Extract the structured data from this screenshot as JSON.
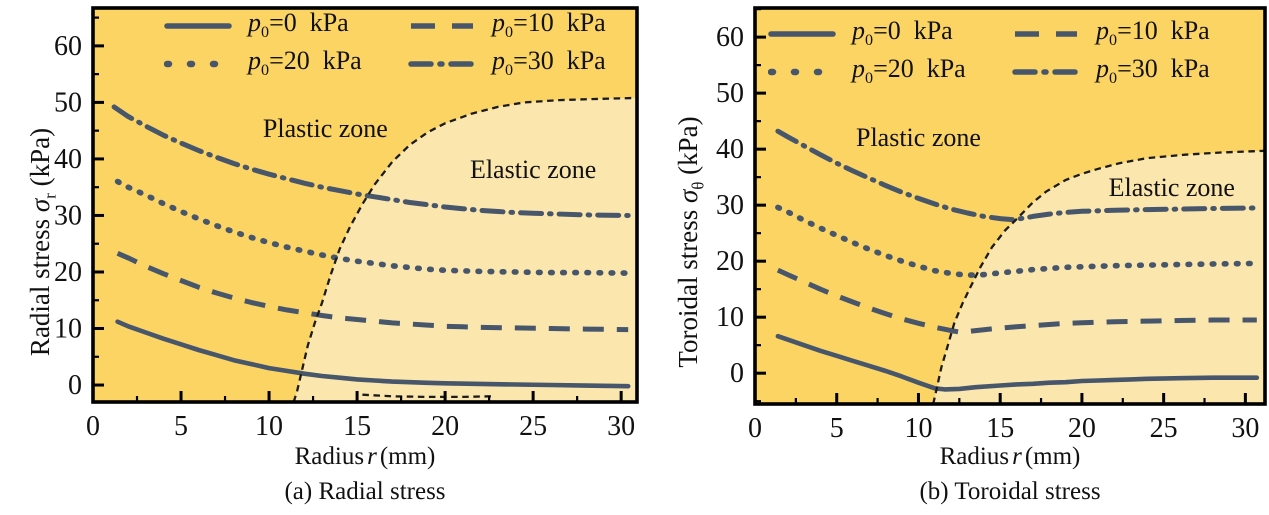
{
  "figure": {
    "colors": {
      "plastic_zone": "#FBD464",
      "elastic_zone": "#FBE7AE",
      "curve": "#47566B",
      "boundary": "#1B1B1B",
      "axis": "#000000",
      "text": "#111111"
    },
    "legend": {
      "items": [
        {
          "var": "p",
          "sub": "0",
          "rest": "=0  kPa",
          "style": "solid"
        },
        {
          "var": "p",
          "sub": "0",
          "rest": "=10  kPa",
          "style": "dashed"
        },
        {
          "var": "p",
          "sub": "0",
          "rest": "=20  kPa",
          "style": "dotted"
        },
        {
          "var": "p",
          "sub": "0",
          "rest": "=30  kPa",
          "style": "dashdot"
        }
      ]
    }
  },
  "chart_data": [
    {
      "type": "line",
      "title": "(a) Radial stress",
      "xlabel": {
        "prefix": "Radius",
        "var": "r",
        "unit": "(mm)"
      },
      "ylabel": {
        "prefix": "Radial stress",
        "symbol": "σ",
        "sub": "r",
        "unit": "(kPa)"
      },
      "x_ticks": [
        0,
        5,
        10,
        15,
        20,
        25,
        30
      ],
      "y_ticks": [
        0,
        10,
        20,
        30,
        40,
        50,
        60
      ],
      "x_minor_step": 2.5,
      "y_minor_step": 5,
      "xlim": [
        0,
        30.9
      ],
      "ylim": [
        -3.0,
        66.7
      ],
      "zones": {
        "plastic_label": "Plastic zone",
        "elastic_label": "Elastic zone",
        "plastic_label_pos": [
          13.2,
          45.3
        ],
        "elastic_label_pos": [
          25.0,
          38.0
        ]
      },
      "boundary": [
        [
          11.4,
          -3.0
        ],
        [
          11.6,
          -1.0
        ],
        [
          11.9,
          3.0
        ],
        [
          12.2,
          7.0
        ],
        [
          12.6,
          11.0
        ],
        [
          13.0,
          14.5
        ],
        [
          13.5,
          19.5
        ],
        [
          14.0,
          24.0
        ],
        [
          14.6,
          28.0
        ],
        [
          15.3,
          32.0
        ],
        [
          16.0,
          35.5
        ],
        [
          17.0,
          39.5
        ],
        [
          18.0,
          42.5
        ],
        [
          19.0,
          44.7
        ],
        [
          20.0,
          46.3
        ],
        [
          21.5,
          48.0
        ],
        [
          23.0,
          49.2
        ],
        [
          24.5,
          50.0
        ],
        [
          26.5,
          50.4
        ],
        [
          28.5,
          50.6
        ],
        [
          30.9,
          50.8
        ]
      ],
      "sub_axis_dash": [
        [
          15.3,
          -1.7
        ],
        [
          17.0,
          -2.0
        ],
        [
          19.0,
          -2.1
        ],
        [
          21.0,
          -2.1
        ],
        [
          22.6,
          -2.0
        ]
      ],
      "series": [
        {
          "name": "p0=0 kPa",
          "style": "solid",
          "points": [
            [
              1.4,
              11.2
            ],
            [
              2,
              10.4
            ],
            [
              3,
              9.3
            ],
            [
              4,
              8.2
            ],
            [
              5,
              7.2
            ],
            [
              6,
              6.2
            ],
            [
              7,
              5.3
            ],
            [
              8,
              4.4
            ],
            [
              9,
              3.7
            ],
            [
              10,
              3.0
            ],
            [
              11,
              2.5
            ],
            [
              12,
              2.0
            ],
            [
              13,
              1.6
            ],
            [
              14,
              1.3
            ],
            [
              15,
              1.0
            ],
            [
              16,
              0.8
            ],
            [
              17,
              0.6
            ],
            [
              18,
              0.5
            ],
            [
              19,
              0.4
            ],
            [
              20,
              0.3
            ],
            [
              22,
              0.2
            ],
            [
              24,
              0.1
            ],
            [
              26,
              0.0
            ],
            [
              28,
              -0.1
            ],
            [
              30.4,
              -0.2
            ]
          ]
        },
        {
          "name": "p0=10 kPa",
          "style": "dashed",
          "points": [
            [
              1.4,
              23.3
            ],
            [
              2,
              22.5
            ],
            [
              3,
              21.0
            ],
            [
              4,
              19.7
            ],
            [
              5,
              18.5
            ],
            [
              6,
              17.3
            ],
            [
              7,
              16.3
            ],
            [
              8,
              15.4
            ],
            [
              9,
              14.6
            ],
            [
              10,
              13.9
            ],
            [
              11,
              13.3
            ],
            [
              12,
              12.8
            ],
            [
              13,
              12.3
            ],
            [
              14,
              11.9
            ],
            [
              15,
              11.6
            ],
            [
              16,
              11.3
            ],
            [
              17,
              11.0
            ],
            [
              18,
              10.8
            ],
            [
              19,
              10.6
            ],
            [
              20,
              10.4
            ],
            [
              21,
              10.3
            ],
            [
              22,
              10.2
            ],
            [
              24,
              10.1
            ],
            [
              26,
              10.0
            ],
            [
              28,
              9.9
            ],
            [
              30.4,
              9.8
            ]
          ]
        },
        {
          "name": "p0=20 kPa",
          "style": "dotted",
          "points": [
            [
              1.4,
              36.0
            ],
            [
              2,
              35.0
            ],
            [
              3,
              33.6
            ],
            [
              4,
              32.1
            ],
            [
              5,
              30.7
            ],
            [
              6,
              29.4
            ],
            [
              7,
              28.2
            ],
            [
              8,
              27.1
            ],
            [
              9,
              26.1
            ],
            [
              10,
              25.2
            ],
            [
              11,
              24.4
            ],
            [
              12,
              23.7
            ],
            [
              13,
              23.0
            ],
            [
              14,
              22.4
            ],
            [
              15,
              21.9
            ],
            [
              16,
              21.5
            ],
            [
              17,
              21.1
            ],
            [
              18,
              20.8
            ],
            [
              19,
              20.5
            ],
            [
              20,
              20.3
            ],
            [
              22,
              20.1
            ],
            [
              24,
              20.0
            ],
            [
              26,
              19.9
            ],
            [
              28,
              19.9
            ],
            [
              30.4,
              19.8
            ]
          ]
        },
        {
          "name": "p0=30 kPa",
          "style": "dashdot",
          "points": [
            [
              1.2,
              49.2
            ],
            [
              2,
              47.5
            ],
            [
              3,
              45.8
            ],
            [
              4,
              44.2
            ],
            [
              5,
              42.8
            ],
            [
              6,
              41.5
            ],
            [
              7,
              40.3
            ],
            [
              8,
              39.2
            ],
            [
              9,
              38.2
            ],
            [
              10,
              37.3
            ],
            [
              11,
              36.5
            ],
            [
              12,
              35.7
            ],
            [
              13,
              35.0
            ],
            [
              14,
              34.4
            ],
            [
              15,
              33.8
            ],
            [
              16,
              33.3
            ],
            [
              17,
              32.8
            ],
            [
              18,
              32.3
            ],
            [
              19,
              31.9
            ],
            [
              20,
              31.5
            ],
            [
              21,
              31.2
            ],
            [
              22,
              30.9
            ],
            [
              23,
              30.7
            ],
            [
              24,
              30.5
            ],
            [
              25,
              30.4
            ],
            [
              26,
              30.3
            ],
            [
              28,
              30.1
            ],
            [
              30.4,
              30.0
            ]
          ]
        }
      ]
    },
    {
      "type": "line",
      "title": "(b) Toroidal stress",
      "xlabel": {
        "prefix": "Radius",
        "var": "r",
        "unit": "(mm)"
      },
      "ylabel": {
        "prefix": "Toroidal stress",
        "symbol": "σ",
        "sub": "θ",
        "unit": "(kPa)"
      },
      "x_ticks": [
        0,
        5,
        10,
        15,
        20,
        25,
        30
      ],
      "y_ticks": [
        0,
        10,
        20,
        30,
        40,
        50,
        60
      ],
      "x_minor_step": 2.5,
      "y_minor_step": 5,
      "xlim": [
        0,
        31.2
      ],
      "ylim": [
        -5.5,
        65.2
      ],
      "zones": {
        "plastic_label": "Plastic zone",
        "elastic_label": "Elastic zone",
        "plastic_label_pos": [
          10.0,
          42.0
        ],
        "elastic_label_pos": [
          25.5,
          33.0
        ]
      },
      "boundary": [
        [
          10.9,
          -5.5
        ],
        [
          11.1,
          -3.0
        ],
        [
          11.4,
          1.0
        ],
        [
          11.8,
          5.0
        ],
        [
          12.2,
          9.0
        ],
        [
          12.7,
          12.5
        ],
        [
          13.2,
          15.5
        ],
        [
          13.8,
          19.0
        ],
        [
          14.5,
          22.5
        ],
        [
          15.3,
          25.5
        ],
        [
          16.0,
          27.5
        ],
        [
          17.0,
          30.5
        ],
        [
          17.8,
          32.4
        ],
        [
          19.0,
          34.5
        ],
        [
          20.0,
          35.6
        ],
        [
          21.0,
          36.5
        ],
        [
          22.3,
          37.5
        ],
        [
          24.0,
          38.4
        ],
        [
          26.3,
          39.0
        ],
        [
          28.5,
          39.4
        ],
        [
          31.2,
          39.7
        ]
      ],
      "series": [
        {
          "name": "p0=0 kPa",
          "style": "solid",
          "points": [
            [
              1.4,
              6.6
            ],
            [
              2,
              6.0
            ],
            [
              3,
              5.0
            ],
            [
              4,
              4.0
            ],
            [
              5,
              3.1
            ],
            [
              6,
              2.2
            ],
            [
              7,
              1.3
            ],
            [
              8,
              0.4
            ],
            [
              9,
              -0.6
            ],
            [
              10,
              -1.7
            ],
            [
              11,
              -2.7
            ],
            [
              11.6,
              -2.9
            ],
            [
              12.5,
              -2.8
            ],
            [
              13.5,
              -2.5
            ],
            [
              15,
              -2.2
            ],
            [
              16,
              -2.0
            ],
            [
              17,
              -1.9
            ],
            [
              18,
              -1.7
            ],
            [
              19,
              -1.6
            ],
            [
              20,
              -1.4
            ],
            [
              21,
              -1.3
            ],
            [
              22,
              -1.2
            ],
            [
              23,
              -1.1
            ],
            [
              24,
              -1.0
            ],
            [
              26,
              -0.9
            ],
            [
              28,
              -0.8
            ],
            [
              30.7,
              -0.8
            ]
          ]
        },
        {
          "name": "p0=10 kPa",
          "style": "dashed",
          "points": [
            [
              1.4,
              18.4
            ],
            [
              2,
              17.6
            ],
            [
              3,
              16.3
            ],
            [
              4,
              15.0
            ],
            [
              5,
              13.8
            ],
            [
              6,
              12.7
            ],
            [
              7,
              11.6
            ],
            [
              8,
              10.6
            ],
            [
              9,
              9.7
            ],
            [
              10,
              8.9
            ],
            [
              11,
              8.2
            ],
            [
              12,
              7.6
            ],
            [
              12.6,
              7.3
            ],
            [
              13.5,
              7.6
            ],
            [
              14.5,
              7.9
            ],
            [
              16,
              8.3
            ],
            [
              17,
              8.5
            ],
            [
              18,
              8.7
            ],
            [
              19,
              8.9
            ],
            [
              20,
              9.0
            ],
            [
              22,
              9.2
            ],
            [
              24,
              9.3
            ],
            [
              26,
              9.4
            ],
            [
              28,
              9.5
            ],
            [
              30.7,
              9.5
            ]
          ]
        },
        {
          "name": "p0=20 kPa",
          "style": "dotted",
          "points": [
            [
              1.4,
              29.6
            ],
            [
              2,
              28.8
            ],
            [
              3,
              27.3
            ],
            [
              4,
              25.9
            ],
            [
              5,
              24.6
            ],
            [
              6,
              23.3
            ],
            [
              7,
              22.1
            ],
            [
              8,
              21.0
            ],
            [
              9,
              20.0
            ],
            [
              10,
              19.1
            ],
            [
              11,
              18.3
            ],
            [
              12,
              17.8
            ],
            [
              13,
              17.5
            ],
            [
              14,
              17.6
            ],
            [
              15,
              17.9
            ],
            [
              16,
              18.2
            ],
            [
              17,
              18.5
            ],
            [
              18,
              18.7
            ],
            [
              19,
              18.9
            ],
            [
              20,
              19.0
            ],
            [
              22,
              19.2
            ],
            [
              24,
              19.3
            ],
            [
              26,
              19.4
            ],
            [
              28,
              19.5
            ],
            [
              30.7,
              19.6
            ]
          ]
        },
        {
          "name": "p0=30 kPa",
          "style": "dashdot",
          "points": [
            [
              1.4,
              43.2
            ],
            [
              2,
              42.2
            ],
            [
              3,
              40.6
            ],
            [
              4,
              39.0
            ],
            [
              5,
              37.5
            ],
            [
              6,
              36.1
            ],
            [
              7,
              34.8
            ],
            [
              8,
              33.5
            ],
            [
              9,
              32.3
            ],
            [
              10,
              31.2
            ],
            [
              11,
              30.2
            ],
            [
              12,
              29.3
            ],
            [
              13,
              28.6
            ],
            [
              14,
              28.0
            ],
            [
              15,
              27.6
            ],
            [
              15.8,
              27.4
            ],
            [
              16.5,
              27.7
            ],
            [
              17,
              28.0
            ],
            [
              18,
              28.4
            ],
            [
              19,
              28.7
            ],
            [
              20,
              28.9
            ],
            [
              21,
              29.0
            ],
            [
              22,
              29.1
            ],
            [
              24,
              29.2
            ],
            [
              26,
              29.3
            ],
            [
              28,
              29.4
            ],
            [
              30.7,
              29.5
            ]
          ]
        }
      ]
    }
  ]
}
